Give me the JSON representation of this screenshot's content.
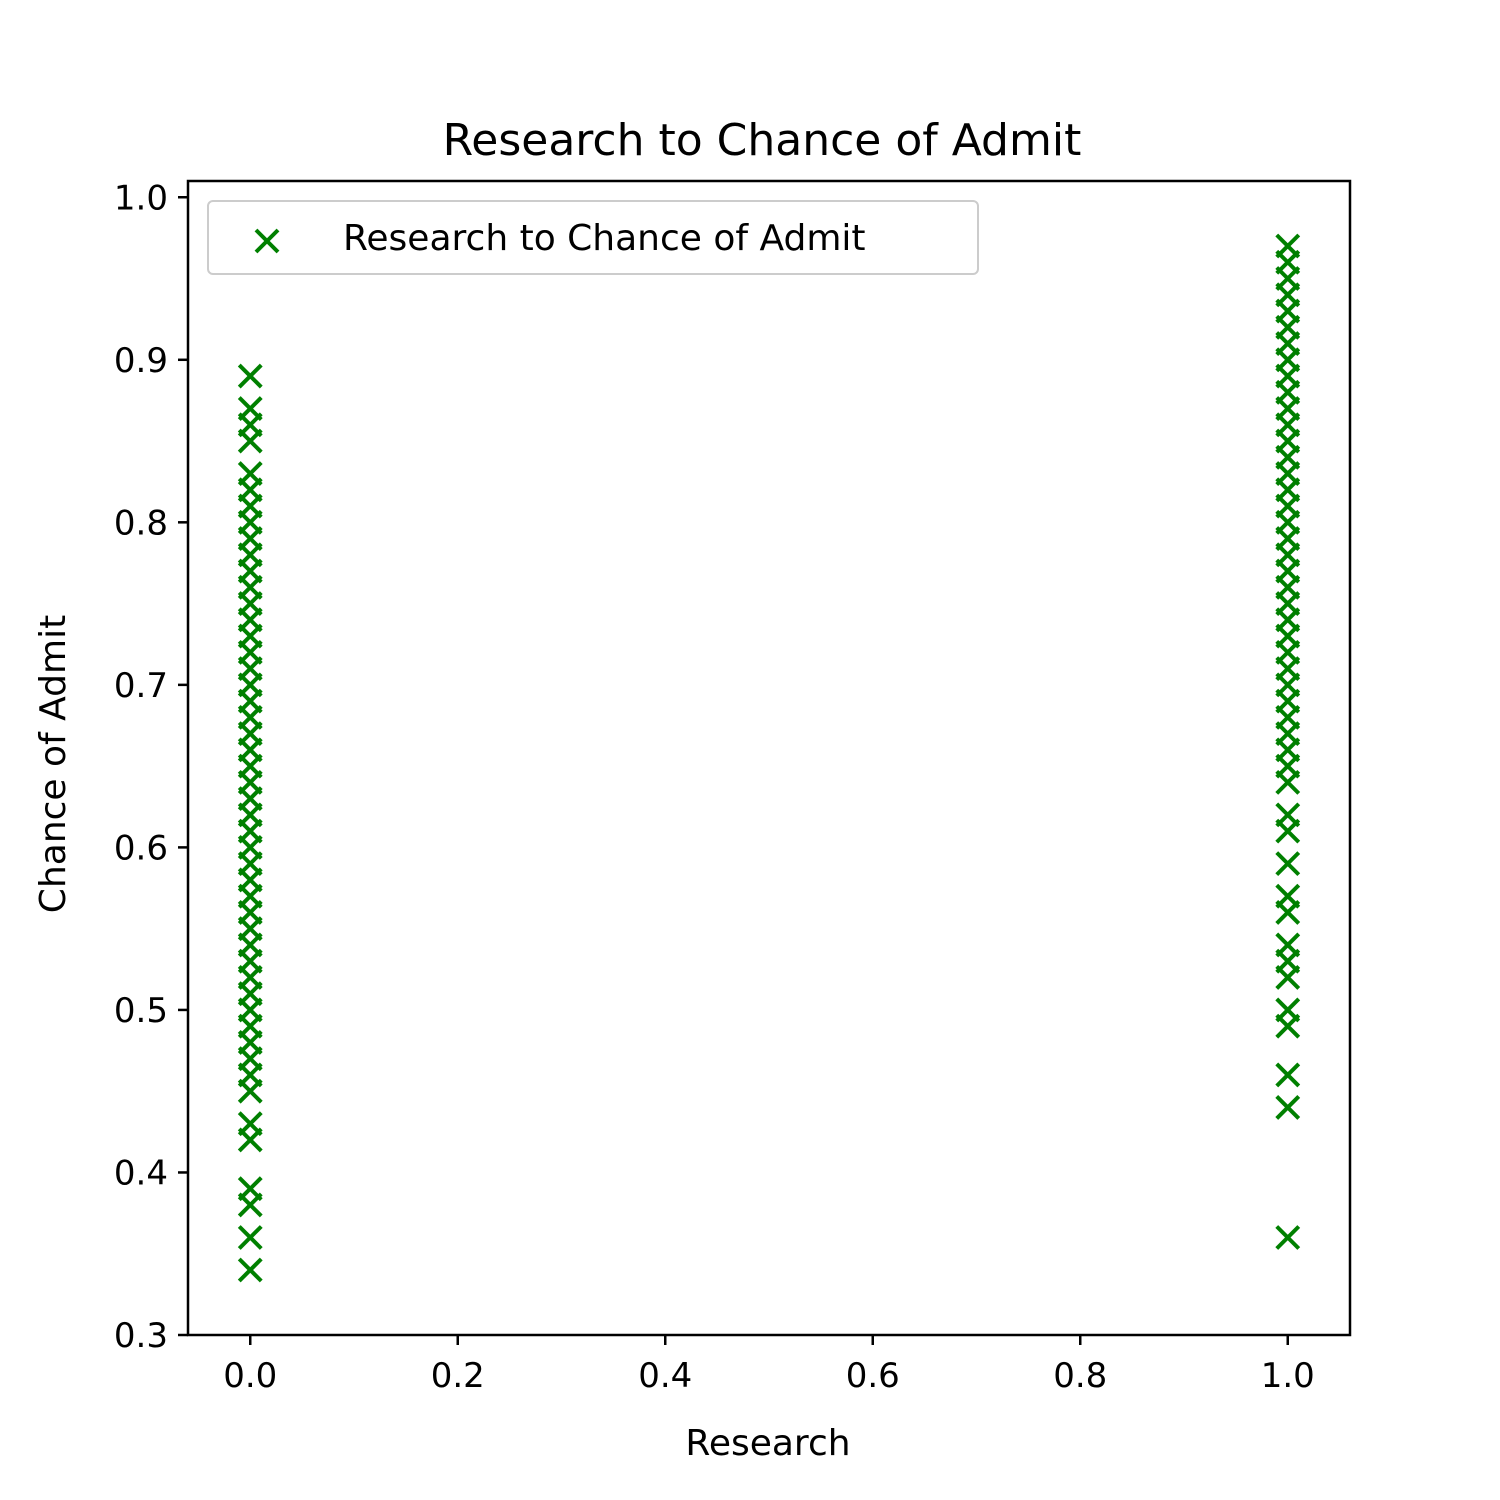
{
  "chart_data": {
    "type": "scatter",
    "title": "Research to Chance of Admit",
    "xlabel": "Research",
    "ylabel": "Chance of Admit",
    "xlim": [
      -0.06,
      1.06
    ],
    "ylim": [
      0.3,
      1.01
    ],
    "xticks": [
      0.0,
      0.2,
      0.4,
      0.6,
      0.8,
      1.0
    ],
    "xtick_labels": [
      "0.0",
      "0.2",
      "0.4",
      "0.6",
      "0.8",
      "1.0"
    ],
    "yticks": [
      0.3,
      0.4,
      0.5,
      0.6,
      0.7,
      0.8,
      0.9,
      1.0
    ],
    "ytick_labels": [
      "0.3",
      "0.4",
      "0.5",
      "0.6",
      "0.7",
      "0.8",
      "0.9",
      "1.0"
    ],
    "grid": false,
    "legend_position": "top-left",
    "marker": "x",
    "series": [
      {
        "name": "Research to Chance of Admit",
        "color": "#008000",
        "points": [
          {
            "research": 0,
            "values": [
              0.34,
              0.36,
              0.38,
              0.39,
              0.42,
              0.43,
              0.45,
              0.46,
              0.47,
              0.48,
              0.49,
              0.5,
              0.51,
              0.52,
              0.53,
              0.54,
              0.55,
              0.56,
              0.57,
              0.58,
              0.59,
              0.6,
              0.61,
              0.62,
              0.63,
              0.64,
              0.65,
              0.66,
              0.67,
              0.68,
              0.69,
              0.7,
              0.71,
              0.72,
              0.73,
              0.74,
              0.75,
              0.76,
              0.77,
              0.78,
              0.79,
              0.8,
              0.81,
              0.82,
              0.83,
              0.85,
              0.86,
              0.87,
              0.89
            ]
          },
          {
            "research": 1,
            "values": [
              0.36,
              0.44,
              0.46,
              0.49,
              0.5,
              0.52,
              0.53,
              0.54,
              0.56,
              0.57,
              0.59,
              0.61,
              0.62,
              0.64,
              0.65,
              0.66,
              0.67,
              0.68,
              0.69,
              0.7,
              0.71,
              0.72,
              0.73,
              0.74,
              0.75,
              0.76,
              0.77,
              0.78,
              0.79,
              0.8,
              0.81,
              0.82,
              0.83,
              0.84,
              0.85,
              0.86,
              0.87,
              0.88,
              0.89,
              0.9,
              0.91,
              0.92,
              0.93,
              0.94,
              0.95,
              0.96,
              0.97
            ]
          }
        ]
      }
    ]
  }
}
